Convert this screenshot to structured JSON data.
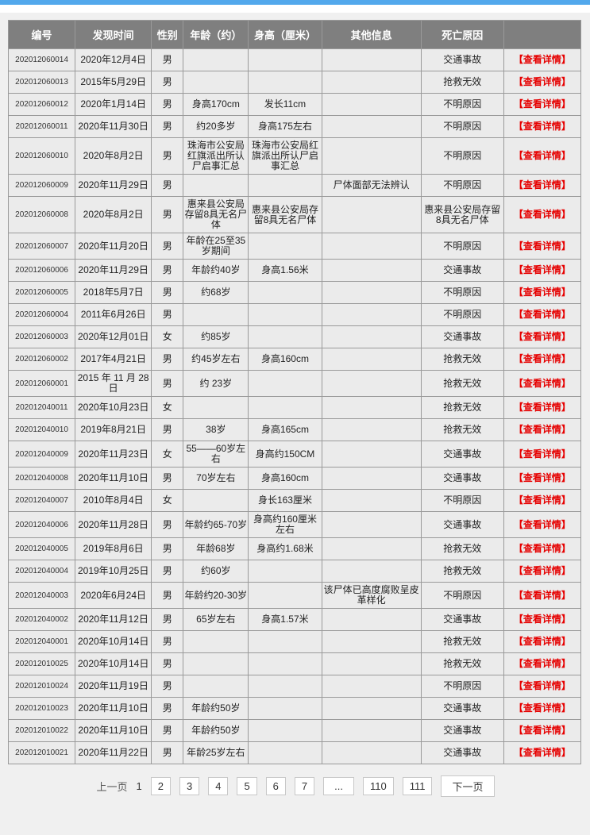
{
  "page": {
    "top_bar_color": "#52a8ec",
    "background_color": "#f0f0f0"
  },
  "table": {
    "header_bg_color": "#7f7f7f",
    "row_bg_color": "#ebebeb",
    "border_color": "#9a9a9a",
    "link_color": "#e60000",
    "columns": [
      "编号",
      "发现时间",
      "性别",
      "年龄（约）",
      "身高（厘米）",
      "其他信息",
      "死亡原因",
      ""
    ],
    "detail_label": "【查看详情】",
    "rows": [
      {
        "id": "202012060014",
        "date": "2020年12月4日",
        "gender": "男",
        "age": "",
        "height": "",
        "other": "",
        "cause": "交通事故"
      },
      {
        "id": "202012060013",
        "date": "2015年5月29日",
        "gender": "男",
        "age": "",
        "height": "",
        "other": "",
        "cause": "抢救无效"
      },
      {
        "id": "202012060012",
        "date": "2020年1月14日",
        "gender": "男",
        "age": "身高170cm",
        "height": "发长11cm",
        "other": "",
        "cause": "不明原因"
      },
      {
        "id": "202012060011",
        "date": "2020年11月30日",
        "gender": "男",
        "age": "约20多岁",
        "height": "身高175左右",
        "other": "",
        "cause": "不明原因"
      },
      {
        "id": "202012060010",
        "date": "2020年8月2日",
        "gender": "男",
        "age": "珠海市公安局红旗派出所认尸启事汇总",
        "height": "珠海市公安局红旗派出所认尸启事汇总",
        "other": "",
        "cause": "不明原因"
      },
      {
        "id": "202012060009",
        "date": "2020年11月29日",
        "gender": "男",
        "age": "",
        "height": "",
        "other": "尸体面部无法辨认",
        "cause": "不明原因"
      },
      {
        "id": "202012060008",
        "date": "2020年8月2日",
        "gender": "男",
        "age": "惠来县公安局存留8具无名尸体",
        "height": "惠来县公安局存留8具无名尸体",
        "other": "",
        "cause": "惠来县公安局存留8具无名尸体"
      },
      {
        "id": "202012060007",
        "date": "2020年11月20日",
        "gender": "男",
        "age": "年龄在25至35岁期间",
        "height": "",
        "other": "",
        "cause": "不明原因"
      },
      {
        "id": "202012060006",
        "date": "2020年11月29日",
        "gender": "男",
        "age": "年龄约40岁",
        "height": "身高1.56米",
        "other": "",
        "cause": "交通事故"
      },
      {
        "id": "202012060005",
        "date": "2018年5月7日",
        "gender": "男",
        "age": "约68岁",
        "height": "",
        "other": "",
        "cause": "不明原因"
      },
      {
        "id": "202012060004",
        "date": "2011年6月26日",
        "gender": "男",
        "age": "",
        "height": "",
        "other": "",
        "cause": "不明原因"
      },
      {
        "id": "202012060003",
        "date": "2020年12月01日",
        "gender": "女",
        "age": "约85岁",
        "height": "",
        "other": "",
        "cause": "交通事故"
      },
      {
        "id": "202012060002",
        "date": "2017年4月21日",
        "gender": "男",
        "age": "约45岁左右",
        "height": "身高160cm",
        "other": "",
        "cause": "抢救无效"
      },
      {
        "id": "202012060001",
        "date": "2015 年 11 月 28 日",
        "gender": "男",
        "age": "约 23岁",
        "height": "",
        "other": "",
        "cause": "抢救无效"
      },
      {
        "id": "202012040011",
        "date": "2020年10月23日",
        "gender": "女",
        "age": "",
        "height": "",
        "other": "",
        "cause": "抢救无效"
      },
      {
        "id": "202012040010",
        "date": "2019年8月21日",
        "gender": "男",
        "age": "38岁",
        "height": "身高165cm",
        "other": "",
        "cause": "抢救无效"
      },
      {
        "id": "202012040009",
        "date": "2020年11月23日",
        "gender": "女",
        "age": "55——60岁左右",
        "height": "身高约150CM",
        "other": "",
        "cause": "交通事故"
      },
      {
        "id": "202012040008",
        "date": "2020年11月10日",
        "gender": "男",
        "age": "70岁左右",
        "height": "身高160cm",
        "other": "",
        "cause": "交通事故"
      },
      {
        "id": "202012040007",
        "date": "2010年8月4日",
        "gender": "女",
        "age": "",
        "height": "身长163厘米",
        "other": "",
        "cause": "不明原因"
      },
      {
        "id": "202012040006",
        "date": "2020年11月28日",
        "gender": "男",
        "age": "年龄约65-70岁",
        "height": "身高约160厘米左右",
        "other": "",
        "cause": "交通事故"
      },
      {
        "id": "202012040005",
        "date": "2019年8月6日",
        "gender": "男",
        "age": "年龄68岁",
        "height": "身高约1.68米",
        "other": "",
        "cause": "抢救无效"
      },
      {
        "id": "202012040004",
        "date": "2019年10月25日",
        "gender": "男",
        "age": "约60岁",
        "height": "",
        "other": "",
        "cause": "抢救无效"
      },
      {
        "id": "202012040003",
        "date": "2020年6月24日",
        "gender": "男",
        "age": "年龄约20-30岁",
        "height": "",
        "other": "该尸体已高度腐败呈皮革样化",
        "cause": "不明原因"
      },
      {
        "id": "202012040002",
        "date": "2020年11月12日",
        "gender": "男",
        "age": "65岁左右",
        "height": "身高1.57米",
        "other": "",
        "cause": "交通事故"
      },
      {
        "id": "202012040001",
        "date": "2020年10月14日",
        "gender": "男",
        "age": "",
        "height": "",
        "other": "",
        "cause": "抢救无效"
      },
      {
        "id": "202012010025",
        "date": "2020年10月14日",
        "gender": "男",
        "age": "",
        "height": "",
        "other": "",
        "cause": "抢救无效"
      },
      {
        "id": "202012010024",
        "date": "2020年11月19日",
        "gender": "男",
        "age": "",
        "height": "",
        "other": "",
        "cause": "不明原因"
      },
      {
        "id": "202012010023",
        "date": "2020年11月10日",
        "gender": "男",
        "age": "年龄约50岁",
        "height": "",
        "other": "",
        "cause": "交通事故"
      },
      {
        "id": "202012010022",
        "date": "2020年11月10日",
        "gender": "男",
        "age": "年龄约50岁",
        "height": "",
        "other": "",
        "cause": "交通事故"
      },
      {
        "id": "202012010021",
        "date": "2020年11月22日",
        "gender": "男",
        "age": "年龄25岁左右",
        "height": "",
        "other": "",
        "cause": "交通事故"
      }
    ]
  },
  "pagination": {
    "prev_label": "上一页",
    "current_page": "1",
    "pages": [
      "2",
      "3",
      "4",
      "5",
      "6",
      "7",
      "...",
      "110",
      "111"
    ],
    "next_label": "下一页"
  }
}
